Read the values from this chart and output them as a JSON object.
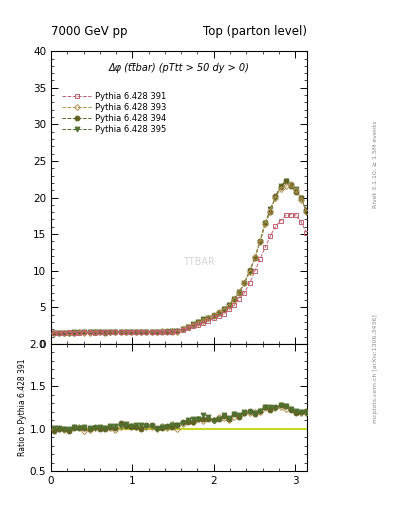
{
  "title_left": "7000 GeV pp",
  "title_right": "Top (parton level)",
  "annotation": "Δφ (tt̅bar) (pTtt > 50 dy > 0)",
  "right_label_top": "Rivet 3.1.10; ≥ 1.5M events",
  "right_label_bottom": "mcplots.cern.ch [arXiv:1306.3436]",
  "watermark": "TTBAR",
  "ylabel_ratio": "Ratio to Pythia 6.428 391",
  "xlim": [
    0,
    3.14159
  ],
  "ylim_main": [
    0,
    40
  ],
  "ylim_ratio": [
    0.5,
    2.0
  ],
  "yticks_main": [
    0,
    5,
    10,
    15,
    20,
    25,
    30,
    35,
    40
  ],
  "yticks_ratio": [
    0.5,
    1.0,
    1.5,
    2.0
  ],
  "xticks": [
    0,
    1,
    2,
    3
  ],
  "series": [
    {
      "label": "Pythia 6.428 391",
      "color": "#c06070",
      "marker": "s",
      "markersize": 3.0,
      "linestyle": "--",
      "linewidth": 0.7,
      "fillstyle": "none"
    },
    {
      "label": "Pythia 6.428 393",
      "color": "#b09050",
      "marker": "D",
      "markersize": 3.0,
      "linestyle": "--",
      "linewidth": 0.7,
      "fillstyle": "none"
    },
    {
      "label": "Pythia 6.428 394",
      "color": "#606020",
      "marker": "o",
      "markersize": 3.5,
      "linestyle": "--",
      "linewidth": 0.7,
      "fillstyle": "full"
    },
    {
      "label": "Pythia 6.428 395",
      "color": "#507030",
      "marker": "v",
      "markersize": 3.5,
      "linestyle": "--",
      "linewidth": 0.7,
      "fillstyle": "full"
    }
  ],
  "ratio_ref_color": "#c8d820",
  "ratio_ref_linewidth": 1.5,
  "background_color": "#ffffff",
  "ratio_flat_value": 1.22
}
